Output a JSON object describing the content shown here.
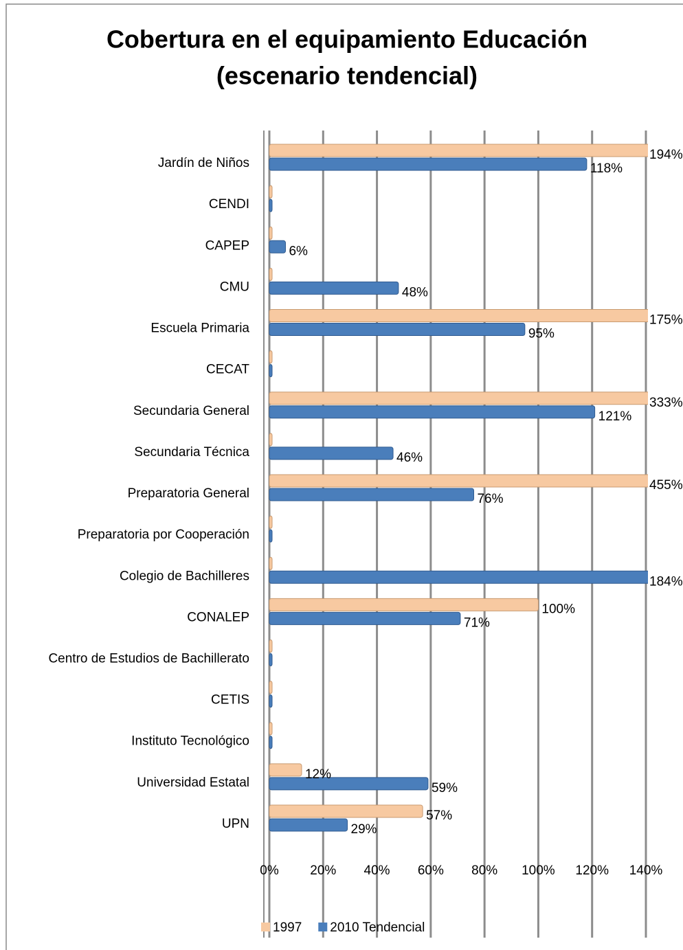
{
  "chart_data": {
    "type": "bar",
    "orientation": "horizontal",
    "title": [
      "Cobertura en el equipamiento Educación",
      "(escenario tendencial)"
    ],
    "categories": [
      "Jardín de Niños",
      "CENDI",
      "CAPEP",
      "CMU",
      "Escuela Primaria",
      "CECAT",
      "Secundaria General",
      "Secundaria Técnica",
      "Preparatoria General",
      "Preparatoria por Cooperación",
      "Colegio de Bachilleres",
      "CONALEP",
      "Centro de Estudios de Bachillerato",
      "CETIS",
      "Instituto Tecnológico",
      "Universidad Estatal",
      "UPN"
    ],
    "series": [
      {
        "name": "1997",
        "color": "#f7c9a1",
        "values": [
          194,
          0,
          0,
          0,
          175,
          0,
          333,
          0,
          455,
          0,
          0,
          100,
          0,
          0,
          0,
          12,
          57
        ],
        "value_labels": [
          "194%",
          null,
          null,
          null,
          "175%",
          null,
          "333%",
          null,
          "455%",
          null,
          null,
          "100%",
          null,
          null,
          null,
          "12%",
          "57%"
        ]
      },
      {
        "name": "2010 Tendencial",
        "color": "#4a7ebb",
        "values": [
          118,
          0,
          6,
          48,
          95,
          0,
          121,
          46,
          76,
          0,
          184,
          71,
          0,
          0,
          0,
          59,
          29
        ],
        "value_labels": [
          "118%",
          null,
          "6%",
          "48%",
          "95%",
          null,
          "121%",
          "46%",
          "76%",
          null,
          "184%",
          "71%",
          null,
          null,
          null,
          "59%",
          "29%"
        ]
      }
    ],
    "xlim": [
      0,
      140
    ],
    "xticks": [
      {
        "value": 0,
        "label": "0%"
      },
      {
        "value": 20,
        "label": "20%"
      },
      {
        "value": 40,
        "label": "40%"
      },
      {
        "value": 60,
        "label": "60%"
      },
      {
        "value": 80,
        "label": "80%"
      },
      {
        "value": 100,
        "label": "100%"
      },
      {
        "value": 120,
        "label": "120%"
      },
      {
        "value": 140,
        "label": "140%"
      }
    ],
    "grid": true,
    "legend": "bottom"
  }
}
